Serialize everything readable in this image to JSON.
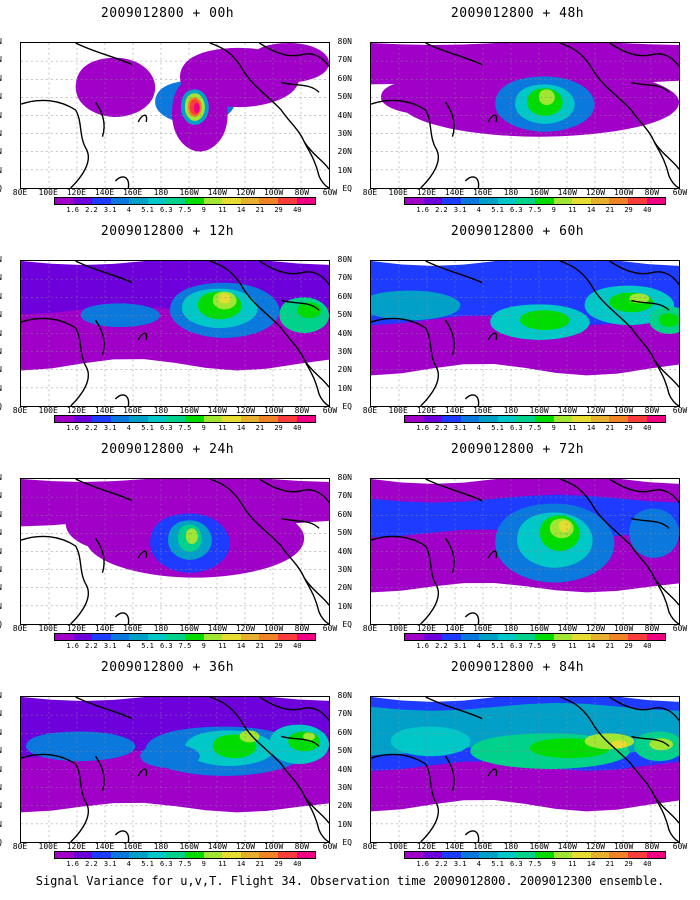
{
  "panels": [
    {
      "title": "2009012800 + 00h",
      "stage": 0
    },
    {
      "title": "2009012800 + 48h",
      "stage": 4
    },
    {
      "title": "2009012800 + 12h",
      "stage": 1
    },
    {
      "title": "2009012800 + 60h",
      "stage": 5
    },
    {
      "title": "2009012800 + 24h",
      "stage": 2
    },
    {
      "title": "2009012800 + 72h",
      "stage": 6
    },
    {
      "title": "2009012800 + 36h",
      "stage": 3
    },
    {
      "title": "2009012800 + 84h",
      "stage": 7
    }
  ],
  "lat_labels": [
    "80N",
    "70N",
    "60N",
    "50N",
    "40N",
    "30N",
    "20N",
    "10N",
    "EQ"
  ],
  "lon_labels": [
    "80E",
    "100E",
    "120E",
    "140E",
    "160E",
    "180",
    "160W",
    "140W",
    "120W",
    "100W",
    "80W",
    "60W"
  ],
  "colorbar": {
    "labels": [
      "1.6",
      "2.2",
      "3.1",
      "4",
      "5.1",
      "6.3",
      "7.5",
      "9",
      "11",
      "14",
      "21",
      "29",
      "40"
    ],
    "colors": [
      "#a000c8",
      "#6e00dc",
      "#1e3cff",
      "#0a78dc",
      "#00a0c8",
      "#00c8c8",
      "#00d28c",
      "#00dc00",
      "#a0e632",
      "#e6dc32",
      "#e6af2d",
      "#f08228",
      "#fa3c3c",
      "#f00082"
    ]
  },
  "caption": "Signal Variance for u,v,T. Flight 34. Observation time 2009012800. 2009012300 ensemble."
}
